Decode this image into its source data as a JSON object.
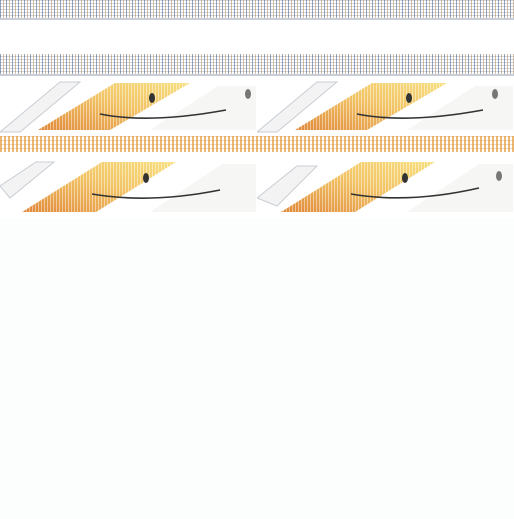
{
  "screen": {
    "description_colors": {
      "background": "#ffffff",
      "noise_primary": "#465a82",
      "noise_secondary": "#aa783c",
      "face_highlight": "#f7df80",
      "face_shadow": "#e0893a",
      "outline": "#9aa3ad",
      "separator": "#e6a046"
    },
    "icons": {
      "finder_face": "finder-smiley-icon"
    }
  }
}
